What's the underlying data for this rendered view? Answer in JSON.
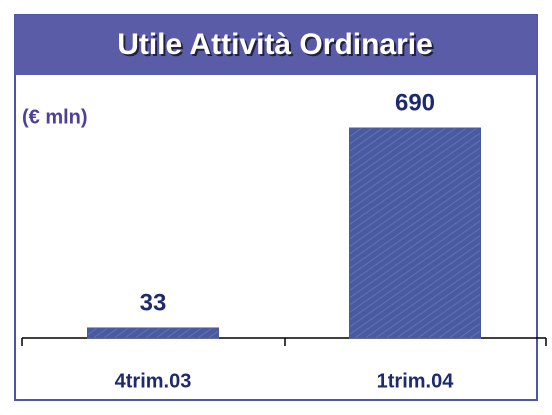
{
  "chart_data": {
    "type": "bar",
    "title": "Utile Attività Ordinarie",
    "subtitle": "(€ mln)",
    "categories": [
      "4trim.03",
      "1trim.04"
    ],
    "values": [
      33,
      690
    ],
    "color": "#4a5aa0"
  }
}
